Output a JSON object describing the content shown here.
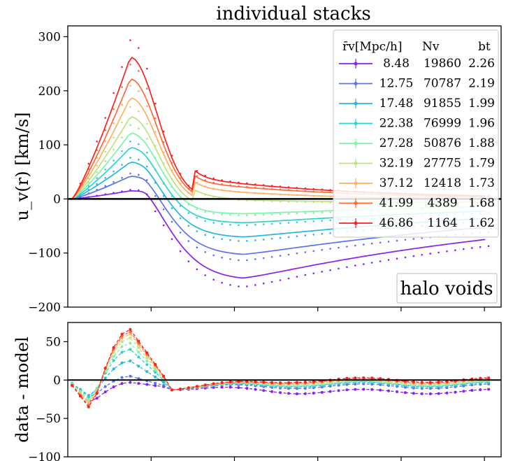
{
  "chart_data": [
    {
      "type": "line",
      "panel": "top",
      "title": "individual stacks",
      "ylabel": "u_v(r) [km/s]",
      "xlabel": "",
      "xlim": [
        0,
        5.2
      ],
      "ylim": [
        -200,
        320
      ],
      "yticks": [
        -200,
        -100,
        0,
        100,
        200,
        300
      ],
      "ytick_labels": [
        "−200",
        "−100",
        "0",
        "100",
        "200",
        "300"
      ],
      "xticks": [
        1,
        2,
        3,
        4,
        5
      ],
      "annotation": "halo voids",
      "legend": {
        "headers": {
          "col1": "r̄v[Mpc/h]",
          "col2": "Nv",
          "col3": "bt"
        },
        "rows": [
          {
            "r": "8.48",
            "n": "19860",
            "b": "2.26"
          },
          {
            "r": "12.75",
            "n": "70787",
            "b": "2.19"
          },
          {
            "r": "17.48",
            "n": "91855",
            "b": "1.99"
          },
          {
            "r": "22.38",
            "n": "76999",
            "b": "1.96"
          },
          {
            "r": "27.28",
            "n": "50876",
            "b": "1.88"
          },
          {
            "r": "32.19",
            "n": "27775",
            "b": "1.79"
          },
          {
            "r": "37.12",
            "n": "12418",
            "b": "1.73"
          },
          {
            "r": "41.99",
            "n": "4389",
            "b": "1.68"
          },
          {
            "r": "46.86",
            "n": "1164",
            "b": "1.62"
          }
        ]
      },
      "series": [
        {
          "name": "8.48",
          "color": "#8b1ff0",
          "peak": 15,
          "trough": -150
        },
        {
          "name": "12.75",
          "color": "#5a73ee",
          "peak": 42,
          "trough": -105
        },
        {
          "name": "17.48",
          "color": "#27b5e4",
          "peak": 68,
          "trough": -72
        },
        {
          "name": "22.38",
          "color": "#2ed3cd",
          "peak": 95,
          "trough": -45
        },
        {
          "name": "27.28",
          "color": "#80f3a8",
          "peak": 122,
          "trough": -28
        },
        {
          "name": "32.19",
          "color": "#bde37c",
          "peak": 152,
          "trough": -18
        },
        {
          "name": "37.12",
          "color": "#ffb061",
          "peak": 187,
          "trough": -8
        },
        {
          "name": "41.99",
          "color": "#ff6a3a",
          "peak": 222,
          "trough": -2
        },
        {
          "name": "46.86",
          "color": "#ff1f1f",
          "peak": 262,
          "trough": 0
        }
      ]
    },
    {
      "type": "line",
      "panel": "bottom",
      "ylabel": "data - model",
      "xlim": [
        0,
        5.2
      ],
      "ylim": [
        -100,
        75
      ],
      "yticks": [
        -100,
        -50,
        0,
        50
      ],
      "ytick_labels": [
        "−100",
        "−50",
        "0",
        "50"
      ],
      "xticks": [
        1,
        2,
        3,
        4,
        5
      ],
      "series_residual_peaks": [
        {
          "name": "8.48",
          "color": "#8b1ff0",
          "dip": -28,
          "peak": -3,
          "tail": -15
        },
        {
          "name": "12.75",
          "color": "#5a73ee",
          "dip": -22,
          "peak": 5,
          "tail": -8
        },
        {
          "name": "17.48",
          "color": "#27b5e4",
          "dip": -20,
          "peak": 25,
          "tail": -6
        },
        {
          "name": "22.38",
          "color": "#2ed3cd",
          "dip": -22,
          "peak": 40,
          "tail": -5
        },
        {
          "name": "27.28",
          "color": "#80f3a8",
          "dip": -25,
          "peak": 48,
          "tail": -4
        },
        {
          "name": "32.19",
          "color": "#bde37c",
          "dip": -28,
          "peak": 55,
          "tail": -3
        },
        {
          "name": "37.12",
          "color": "#ffb061",
          "dip": -30,
          "peak": 60,
          "tail": -2
        },
        {
          "name": "41.99",
          "color": "#ff6a3a",
          "dip": -33,
          "peak": 63,
          "tail": -1
        },
        {
          "name": "46.86",
          "color": "#ff1f1f",
          "dip": -35,
          "peak": 66,
          "tail": 0
        }
      ]
    }
  ]
}
